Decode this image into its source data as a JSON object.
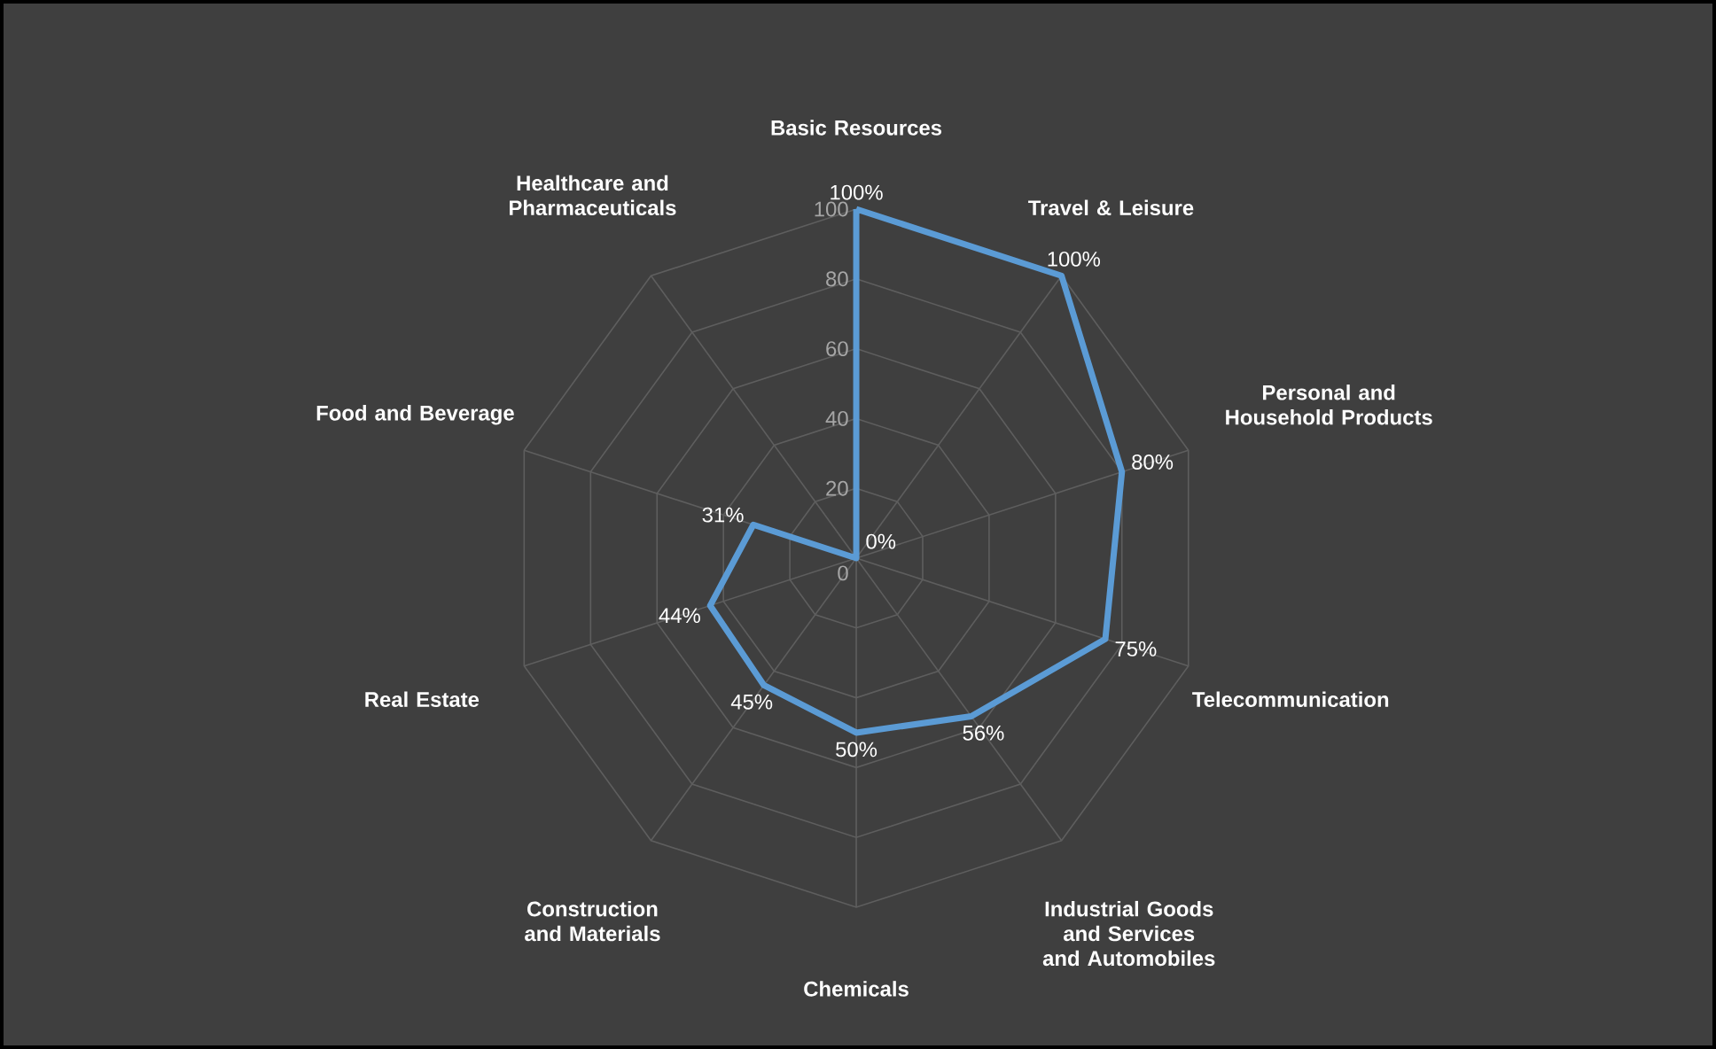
{
  "chart_data": {
    "type": "radar",
    "categories": [
      "Basic Resources",
      "Travel & Leisure",
      "Personal and Household Products",
      "Telecommunication",
      "Industrial Goods and Services and Automobiles",
      "Chemicals",
      "Construction and Materials",
      "Real Estate",
      "Food and Beverage",
      "Healthcare and Pharmaceuticals"
    ],
    "series": [
      {
        "color": "#5b9bd5",
        "values": [
          100,
          100,
          80,
          75,
          56,
          50,
          45,
          44,
          31,
          0
        ],
        "value_labels": [
          "100%",
          "100%",
          "80%",
          "75%",
          "56%",
          "50%",
          "45%",
          "44%",
          "31%",
          "0%"
        ]
      }
    ],
    "ylim": [
      0,
      100
    ],
    "yticks": [
      0,
      20,
      40,
      60,
      80,
      100
    ],
    "grid": true,
    "marker": "none"
  }
}
